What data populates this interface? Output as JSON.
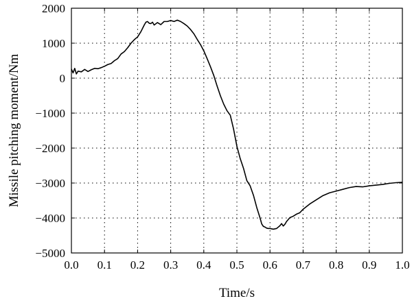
{
  "chart_data": {
    "type": "line",
    "title": "",
    "xlabel": "Time/s",
    "ylabel": "Missile pitching moment/Nm",
    "xlim": [
      0.0,
      1.0
    ],
    "ylim": [
      -5000,
      2000
    ],
    "grid": true,
    "x_ticks": [
      0.0,
      0.1,
      0.2,
      0.3,
      0.4,
      0.5,
      0.6,
      0.7,
      0.8,
      0.9,
      1.0
    ],
    "x_tick_labels": [
      "0.0",
      "0.1",
      "0.2",
      "0.3",
      "0.4",
      "0.5",
      "0.6",
      "0.7",
      "0.8",
      "0.9",
      "1.0"
    ],
    "y_ticks": [
      -5000,
      -4000,
      -3000,
      -2000,
      -1000,
      0,
      1000,
      2000
    ],
    "y_tick_labels": [
      "−5000",
      "−4000",
      "−3000",
      "−2000",
      "−1000",
      "0",
      "1000",
      "2000"
    ],
    "series": [
      {
        "color": "#000000",
        "x": [
          0.0,
          0.005,
          0.01,
          0.015,
          0.02,
          0.03,
          0.04,
          0.05,
          0.06,
          0.07,
          0.08,
          0.09,
          0.1,
          0.11,
          0.12,
          0.13,
          0.14,
          0.15,
          0.16,
          0.17,
          0.18,
          0.19,
          0.2,
          0.21,
          0.22,
          0.225,
          0.23,
          0.235,
          0.24,
          0.245,
          0.25,
          0.26,
          0.27,
          0.28,
          0.29,
          0.3,
          0.31,
          0.32,
          0.33,
          0.34,
          0.35,
          0.36,
          0.37,
          0.38,
          0.39,
          0.4,
          0.41,
          0.42,
          0.43,
          0.44,
          0.45,
          0.46,
          0.47,
          0.48,
          0.49,
          0.5,
          0.51,
          0.52,
          0.53,
          0.54,
          0.55,
          0.56,
          0.57,
          0.575,
          0.58,
          0.585,
          0.59,
          0.595,
          0.6,
          0.61,
          0.62,
          0.63,
          0.635,
          0.64,
          0.645,
          0.65,
          0.66,
          0.67,
          0.68,
          0.69,
          0.7,
          0.72,
          0.74,
          0.76,
          0.78,
          0.8,
          0.82,
          0.84,
          0.86,
          0.88,
          0.9,
          0.92,
          0.94,
          0.96,
          0.98,
          1.0
        ],
        "y": [
          260,
          150,
          280,
          120,
          200,
          180,
          250,
          190,
          240,
          280,
          270,
          300,
          340,
          390,
          420,
          500,
          560,
          690,
          760,
          870,
          1000,
          1100,
          1180,
          1330,
          1520,
          1600,
          1620,
          1570,
          1560,
          1600,
          1520,
          1590,
          1530,
          1620,
          1620,
          1650,
          1620,
          1660,
          1620,
          1560,
          1490,
          1390,
          1270,
          1110,
          960,
          780,
          560,
          330,
          80,
          -220,
          -500,
          -740,
          -930,
          -1060,
          -1460,
          -1950,
          -2300,
          -2580,
          -2930,
          -3080,
          -3350,
          -3700,
          -4000,
          -4170,
          -4240,
          -4260,
          -4290,
          -4300,
          -4300,
          -4320,
          -4300,
          -4220,
          -4160,
          -4230,
          -4180,
          -4100,
          -3990,
          -3950,
          -3890,
          -3850,
          -3750,
          -3600,
          -3480,
          -3360,
          -3280,
          -3230,
          -3180,
          -3130,
          -3100,
          -3110,
          -3080,
          -3060,
          -3040,
          -3010,
          -2990,
          -2980
        ]
      }
    ]
  }
}
